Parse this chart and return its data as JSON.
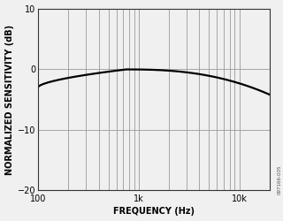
{
  "title": "",
  "xlabel": "FREQUENCY (Hz)",
  "ylabel": "NORMALIZED SENSITIVITY (dB)",
  "xmin": 100,
  "xmax": 20000,
  "ymin": -20,
  "ymax": 10,
  "yticks": [
    -20,
    -10,
    0,
    10
  ],
  "xtick_labels": [
    "100",
    "1k",
    "10k"
  ],
  "xtick_positions": [
    100,
    1000,
    10000
  ],
  "line_color": "#000000",
  "line_width": 1.6,
  "grid_color": "#999999",
  "bg_color": "#f0f0f0",
  "curve_start_db": -3.0,
  "curve_peak_db": -0.05,
  "curve_end_db": -4.2,
  "label_fontsize": 7,
  "tick_fontsize": 7,
  "watermark": "097166-005"
}
